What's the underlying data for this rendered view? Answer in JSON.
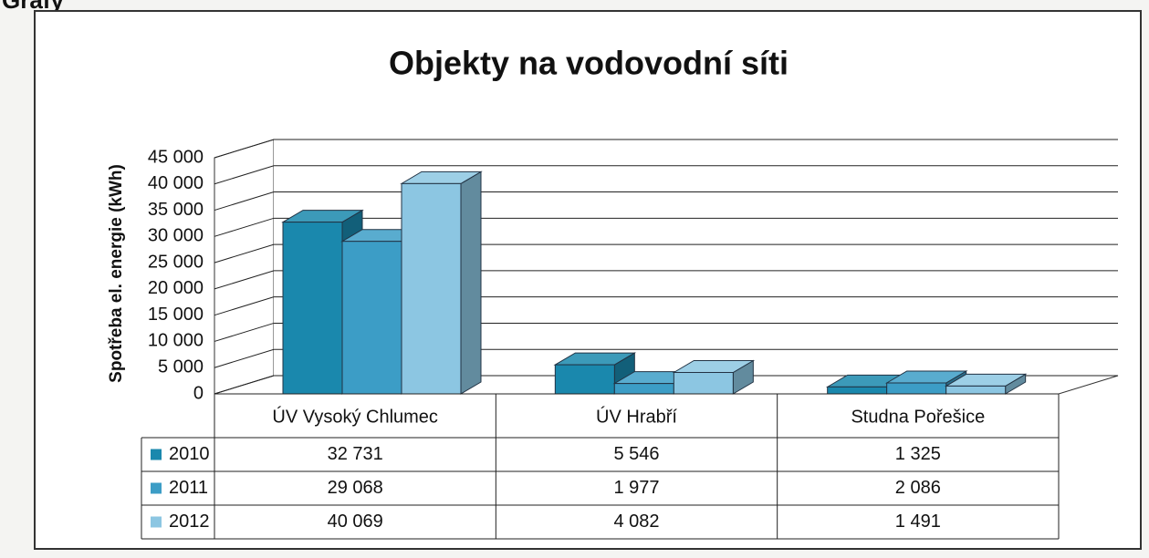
{
  "heading": "Grafy",
  "chart_data": {
    "type": "bar3d",
    "title": "Objekty na vodovodní síti",
    "y_label": "Spotřeba el. energie (kWh)",
    "categories": [
      "ÚV Vysoký Chlumec",
      "ÚV Hrabří",
      "Studna Pořešice"
    ],
    "series": [
      {
        "name": "2010",
        "color": "#1a88ad",
        "values": [
          32731,
          5546,
          1325
        ],
        "value_labels": [
          "32 731",
          "5 546",
          "1 325"
        ]
      },
      {
        "name": "2011",
        "color": "#3c9dc6",
        "values": [
          29068,
          1977,
          2086
        ],
        "value_labels": [
          "29 068",
          "1 977",
          "2 086"
        ]
      },
      {
        "name": "2012",
        "color": "#8cc6e2",
        "values": [
          40069,
          4082,
          1491
        ],
        "value_labels": [
          "40 069",
          "4 082",
          "1 491"
        ]
      }
    ],
    "ylim": [
      0,
      45000
    ],
    "yticks": [
      0,
      {
        "value": 5000,
        "label": "5 000"
      },
      {
        "value": 10000,
        "label": "10 000"
      },
      {
        "value": 15000,
        "label": "15 000"
      },
      {
        "value": 20000,
        "label": "20 000"
      },
      {
        "value": 25000,
        "label": "25 000"
      },
      {
        "value": 30000,
        "label": "30 000"
      },
      {
        "value": 35000,
        "label": "35 000"
      },
      {
        "value": 40000,
        "label": "40 000"
      },
      {
        "value": 45000,
        "label": "45 000"
      }
    ],
    "grid": true
  }
}
